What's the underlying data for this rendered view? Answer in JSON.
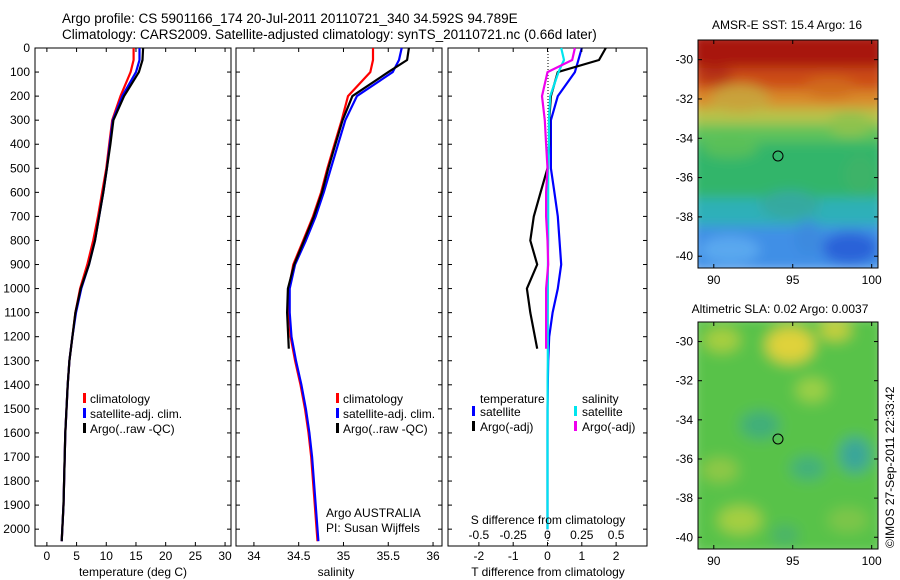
{
  "title": {
    "line1": "Argo profile: CS 5901166_174 20-Jul-2011 20110721_340 34.592S 94.789E",
    "line2": "Climatology: CARS2009. Satellite-adjusted climatology: synTS_20110721.nc (0.66d later)"
  },
  "colors": {
    "climatology": "#ff0000",
    "satellite": "#0000ff",
    "argo": "#000000",
    "sal_satellite": "#00e5ee",
    "sal_argo": "#ee00ee"
  },
  "depth_axis": {
    "range": [
      0,
      2070
    ],
    "ticks": [
      0,
      100,
      200,
      300,
      400,
      500,
      600,
      700,
      800,
      900,
      1000,
      1100,
      1200,
      1300,
      1400,
      1500,
      1600,
      1700,
      1800,
      1900,
      2000
    ],
    "inverted": true
  },
  "temperature_panel": {
    "xlabel": "temperature (deg C)",
    "xlim": [
      -2,
      31
    ],
    "ticks": [
      0,
      5,
      10,
      15,
      20,
      25,
      30
    ],
    "legend": [
      "climatology",
      "satellite-adj. clim.",
      "Argo(..raw -QC)"
    ]
  },
  "salinity_panel": {
    "xlabel": "salinity",
    "xlim": [
      33.8,
      36.1
    ],
    "ticks": [
      "34",
      "34.5",
      "35",
      "35.5",
      "36"
    ],
    "legend": [
      "climatology",
      "satellite-adj. clim.",
      "Argo(..raw -QC)"
    ],
    "note1": "Argo AUSTRALIA",
    "note2": "PI: Susan Wijffels"
  },
  "difference_panel": {
    "xlabel_bottom": "T difference from climatology",
    "xlabel_top": "S difference from climatology",
    "xlim": [
      -2.9,
      2.9
    ],
    "bottom_ticks": [
      "-2",
      "-1",
      "0",
      "1",
      "2"
    ],
    "top_ticks": [
      "-0.5",
      "-0.25",
      "0",
      "0.25",
      "0.5"
    ],
    "legend_temp_title": "temperature",
    "legend_sal_title": "salinity",
    "legend_temp": [
      "satellite",
      "Argo(-adj)"
    ],
    "legend_sal": [
      "satellite",
      "Argo(-adj)"
    ]
  },
  "sst_map": {
    "title": "AMSR-E SST: 15.4 Argo: 16",
    "yticks": [
      "-30",
      "-32",
      "-34",
      "-36",
      "-38",
      "-40"
    ],
    "xticks": [
      "90",
      "95",
      "100"
    ],
    "float_position": {
      "lon": 94.789,
      "lat": -34.592
    }
  },
  "sla_map": {
    "title": "Altimetric SLA: 0.02 Argo: 0.0037",
    "yticks": [
      "-30",
      "-32",
      "-34",
      "-36",
      "-38",
      "-40"
    ],
    "xticks": [
      "90",
      "95",
      "100"
    ],
    "float_position": {
      "lon": 94.789,
      "lat": -34.592
    }
  },
  "credit": "©IMOS 27-Sep-2011 22:33:42",
  "chart_data": [
    {
      "type": "line",
      "name": "temperature profile",
      "xlabel": "temperature (deg C)",
      "ylabel": "",
      "xlim": [
        -2,
        31
      ],
      "ylim": [
        2070,
        0
      ],
      "series": [
        {
          "name": "climatology",
          "x": [
            14.6,
            14.6,
            14.1,
            12.4,
            11.0,
            10.5,
            10.0,
            9.3,
            8.6,
            7.8,
            6.8,
            5.6,
            4.8,
            4.3,
            3.8,
            3.5,
            3.3,
            3.1,
            3.0,
            2.9,
            2.8,
            2.6,
            2.5
          ],
          "y": [
            0,
            50,
            100,
            200,
            300,
            400,
            500,
            600,
            700,
            800,
            900,
            1000,
            1100,
            1200,
            1300,
            1400,
            1500,
            1600,
            1700,
            1800,
            1900,
            2000,
            2050
          ]
        },
        {
          "name": "satellite-adj. clim.",
          "x": [
            15.6,
            15.6,
            15.0,
            12.7,
            11.1,
            10.6,
            10.1,
            9.5,
            8.8,
            8.1,
            7.1,
            5.8,
            4.9,
            4.3,
            3.8,
            3.5,
            3.3,
            3.1,
            3.0,
            2.9,
            2.8,
            2.6,
            2.5
          ],
          "y": [
            0,
            50,
            100,
            200,
            300,
            400,
            500,
            600,
            700,
            800,
            900,
            1000,
            1100,
            1200,
            1300,
            1400,
            1500,
            1600,
            1700,
            1800,
            1900,
            2000,
            2050
          ]
        },
        {
          "name": "Argo(..raw -QC)",
          "x": [
            16.2,
            16.1,
            15.5,
            13.0,
            11.2,
            10.7,
            10.1,
            9.5,
            8.8,
            8.1,
            7.1,
            5.7,
            4.8,
            4.3,
            3.8,
            3.5,
            3.3,
            3.1,
            3.0,
            2.9,
            2.8,
            2.6,
            2.5
          ],
          "y": [
            0,
            50,
            100,
            200,
            300,
            400,
            500,
            600,
            700,
            800,
            900,
            1000,
            1100,
            1200,
            1300,
            1400,
            1500,
            1600,
            1700,
            1800,
            1900,
            2000,
            2050
          ]
        }
      ]
    },
    {
      "type": "line",
      "name": "salinity profile",
      "xlabel": "salinity",
      "xlim": [
        33.8,
        36.1
      ],
      "ylim": [
        2070,
        0
      ],
      "series": [
        {
          "name": "climatology",
          "x": [
            35.33,
            35.33,
            35.3,
            35.05,
            34.98,
            34.9,
            34.82,
            34.75,
            34.66,
            34.55,
            34.44,
            34.39,
            34.39,
            34.41,
            34.46,
            34.52,
            34.57,
            34.61,
            34.64,
            34.66,
            34.68,
            34.7,
            34.71
          ],
          "y": [
            0,
            50,
            100,
            200,
            300,
            400,
            500,
            600,
            700,
            800,
            900,
            1000,
            1100,
            1200,
            1300,
            1400,
            1500,
            1600,
            1700,
            1800,
            1900,
            2000,
            2050
          ]
        },
        {
          "name": "satellite-adj. clim.",
          "x": [
            35.65,
            35.62,
            35.55,
            35.15,
            35.02,
            34.94,
            34.86,
            34.78,
            34.69,
            34.58,
            34.46,
            34.4,
            34.4,
            34.42,
            34.47,
            34.53,
            34.58,
            34.62,
            34.65,
            34.67,
            34.69,
            34.71,
            34.72
          ],
          "y": [
            0,
            50,
            100,
            200,
            300,
            400,
            500,
            600,
            700,
            800,
            900,
            1000,
            1100,
            1200,
            1300,
            1400,
            1500,
            1600,
            1700,
            1800,
            1900,
            2000,
            2050
          ]
        },
        {
          "name": "Argo(..raw -QC)",
          "x": [
            35.73,
            35.71,
            35.5,
            35.1,
            34.99,
            34.91,
            34.83,
            34.76,
            34.67,
            34.56,
            34.45,
            34.38,
            34.37,
            34.39
          ],
          "y": [
            0,
            50,
            100,
            200,
            300,
            400,
            500,
            600,
            700,
            800,
            900,
            1000,
            1100,
            1250
          ]
        }
      ]
    },
    {
      "type": "line",
      "name": "difference from climatology",
      "xlabel": "T difference from climatology",
      "xlim": [
        -2.9,
        2.9
      ],
      "ylim": [
        2070,
        0
      ],
      "series": [
        {
          "name": "temperature satellite",
          "x": [
            1.0,
            0.9,
            0.8,
            0.3,
            0.1,
            0.1,
            0.1,
            0.2,
            0.3,
            0.35,
            0.4,
            0.3,
            0.15,
            0.05,
            0.02,
            0.01,
            0.0,
            0.0,
            0.0,
            0.0,
            0.0,
            0.0
          ],
          "y": [
            0,
            50,
            100,
            200,
            300,
            400,
            500,
            600,
            700,
            800,
            900,
            1000,
            1100,
            1200,
            1300,
            1400,
            1500,
            1600,
            1700,
            1800,
            1900,
            2000
          ]
        },
        {
          "name": "temperature Argo(-adj)",
          "x": [
            1.7,
            1.5,
            0.3,
            0.1,
            0.05,
            0.05,
            0.0,
            -0.2,
            -0.4,
            -0.5,
            -0.3,
            -0.6,
            -0.5,
            -0.3
          ],
          "y": [
            0,
            50,
            100,
            200,
            300,
            400,
            500,
            600,
            700,
            800,
            900,
            1000,
            1100,
            1250
          ]
        },
        {
          "name": "salinity satellite",
          "x": [
            0.1,
            0.12,
            0.08,
            0.02,
            0.01,
            0.01,
            0.005,
            0.005,
            0.005,
            0.005,
            0.003,
            0.003,
            0.002,
            0.002,
            0.002,
            0.001,
            0.001,
            0.0,
            0.0,
            0.0,
            0.0,
            0.0
          ],
          "y": [
            0,
            50,
            100,
            200,
            300,
            400,
            500,
            600,
            700,
            800,
            900,
            1000,
            1100,
            1200,
            1300,
            1400,
            1500,
            1600,
            1700,
            1800,
            1900,
            2000
          ]
        },
        {
          "name": "salinity Argo(-adj)",
          "x": [
            0.2,
            0.18,
            0.0,
            -0.04,
            -0.02,
            -0.01,
            0.0,
            -0.01,
            -0.01,
            0.0,
            0.005,
            -0.01,
            -0.01,
            -0.01
          ],
          "y": [
            0,
            50,
            100,
            200,
            300,
            400,
            500,
            600,
            700,
            800,
            900,
            1000,
            1100,
            1250
          ]
        }
      ]
    }
  ]
}
